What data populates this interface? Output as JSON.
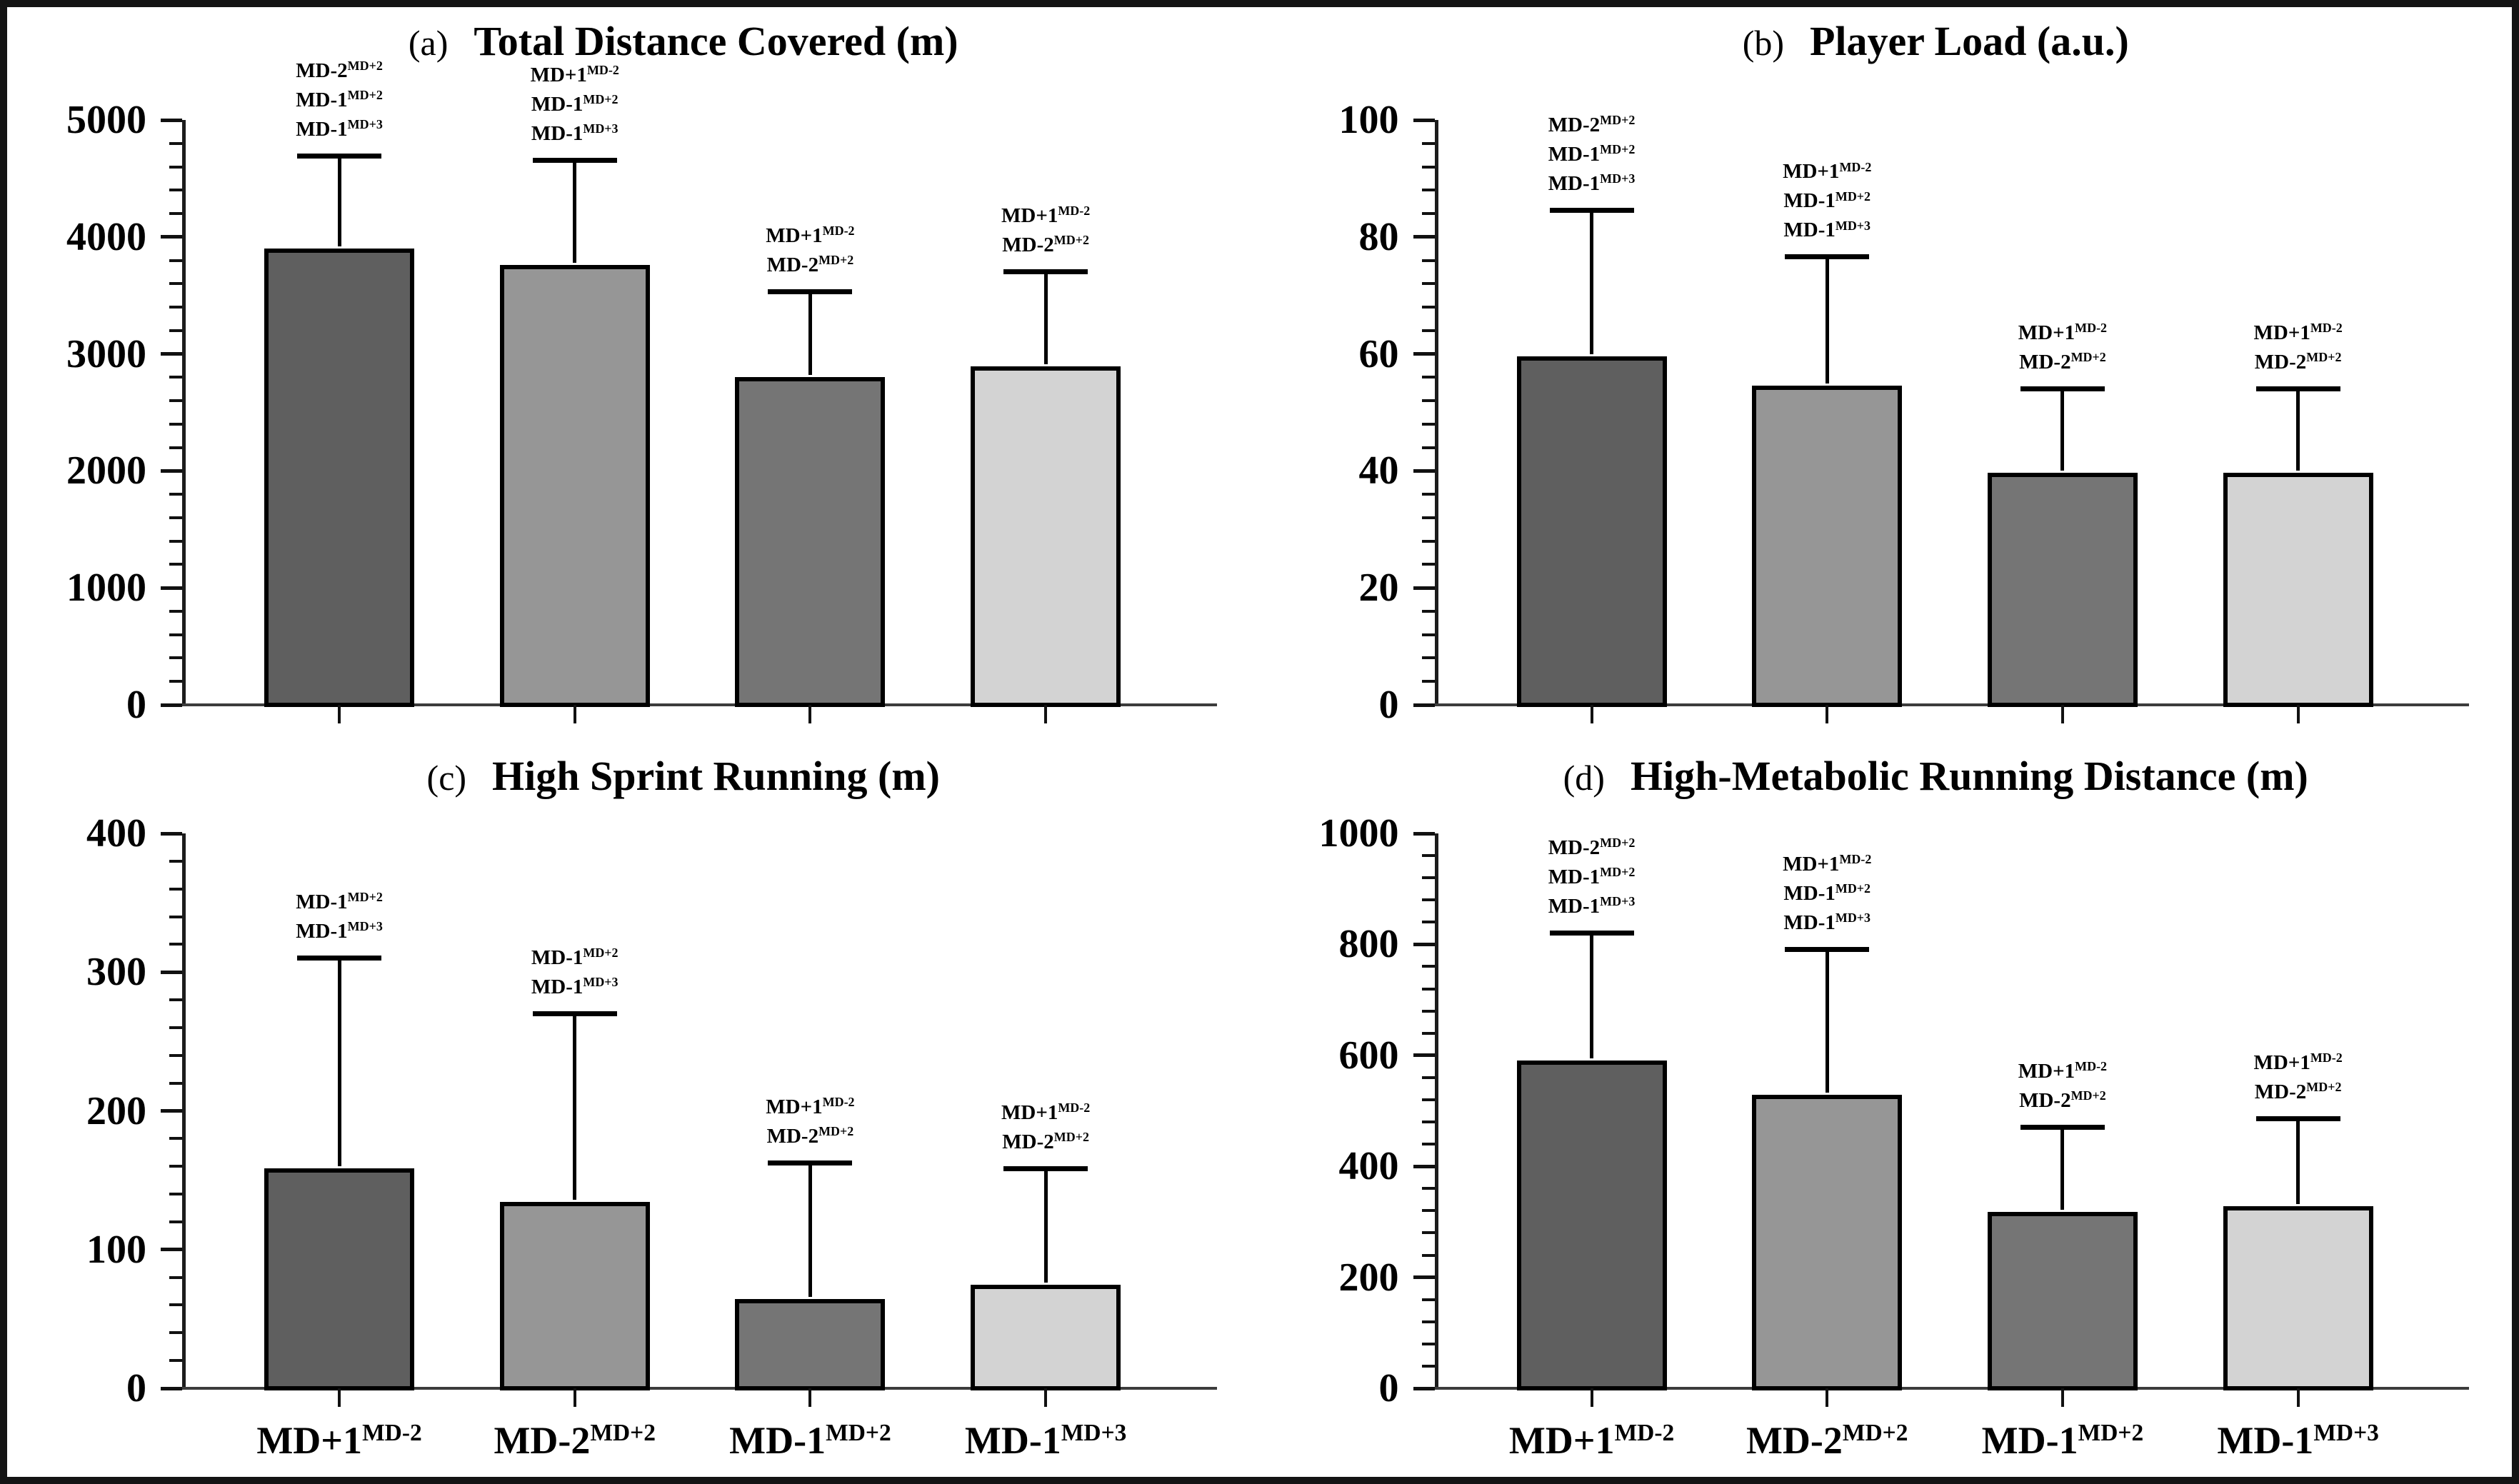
{
  "figure": {
    "background": "#ffffff",
    "border_color": "#141414",
    "bar_colors": [
      "#5f5f5f",
      "#969696",
      "#757575",
      "#d3d3d3"
    ]
  },
  "chart_data": [
    {
      "type": "bar",
      "panel_letter": "(a)",
      "title": "Total Distance Covered (m)",
      "xlabel": "",
      "ylabel": "",
      "ylim": [
        0,
        5000
      ],
      "ytick_step": 1000,
      "minor_subdivisions": 5,
      "grid": false,
      "show_x_labels": false,
      "categories": [
        "MD+1^MD-2",
        "MD-2^MD+2",
        "MD-1^MD+2",
        "MD-1^MD+3"
      ],
      "values": [
        3920,
        3780,
        2820,
        2910
      ],
      "error_tops": [
        4690,
        4650,
        3530,
        3700
      ],
      "annotations": [
        [
          "MD-2^MD+2",
          "MD-1^MD+2",
          "MD-1^MD+3"
        ],
        [
          "MD+1^MD-2",
          "MD-1^MD+2",
          "MD-1^MD+3"
        ],
        [
          "MD+1^MD-2",
          "MD-2^MD+2"
        ],
        [
          "MD+1^MD-2",
          "MD-2^MD+2"
        ]
      ]
    },
    {
      "type": "bar",
      "panel_letter": "(b)",
      "title": "Player Load (a.u.)",
      "xlabel": "",
      "ylabel": "",
      "ylim": [
        0,
        100
      ],
      "ytick_step": 20,
      "minor_subdivisions": 5,
      "grid": false,
      "show_x_labels": false,
      "categories": [
        "MD+1^MD-2",
        "MD-2^MD+2",
        "MD-1^MD+2",
        "MD-1^MD+3"
      ],
      "values": [
        60,
        55,
        40,
        40
      ],
      "error_tops": [
        84.5,
        76.5,
        54,
        54
      ],
      "annotations": [
        [
          "MD-2^MD+2",
          "MD-1^MD+2",
          "MD-1^MD+3"
        ],
        [
          "MD+1^MD-2",
          "MD-1^MD+2",
          "MD-1^MD+3"
        ],
        [
          "MD+1^MD-2",
          "MD-2^MD+2"
        ],
        [
          "MD+1^MD-2",
          "MD-2^MD+2"
        ]
      ]
    },
    {
      "type": "bar",
      "panel_letter": "(c)",
      "title": "High Sprint Running (m)",
      "xlabel": "",
      "ylabel": "",
      "ylim": [
        0,
        400
      ],
      "ytick_step": 100,
      "minor_subdivisions": 5,
      "grid": false,
      "show_x_labels": true,
      "categories": [
        "MD+1^MD-2",
        "MD-2^MD+2",
        "MD-1^MD+2",
        "MD-1^MD+3"
      ],
      "values": [
        160,
        136,
        66,
        76
      ],
      "error_tops": [
        310,
        270,
        162,
        158
      ],
      "annotations": [
        [
          "MD-1^MD+2",
          "MD-1^MD+3"
        ],
        [
          "MD-1^MD+2",
          "MD-1^MD+3"
        ],
        [
          "MD+1^MD-2",
          "MD-2^MD+2"
        ],
        [
          "MD+1^MD-2",
          "MD-2^MD+2"
        ]
      ]
    },
    {
      "type": "bar",
      "panel_letter": "(d)",
      "title": "High-Metabolic Running Distance (m)",
      "xlabel": "",
      "ylabel": "",
      "ylim": [
        0,
        1000
      ],
      "ytick_step": 200,
      "minor_subdivisions": 5,
      "grid": false,
      "show_x_labels": true,
      "categories": [
        "MD+1^MD-2",
        "MD-2^MD+2",
        "MD-1^MD+2",
        "MD-1^MD+3"
      ],
      "values": [
        595,
        533,
        322,
        332
      ],
      "error_tops": [
        820,
        790,
        470,
        485
      ],
      "annotations": [
        [
          "MD-2^MD+2",
          "MD-1^MD+2",
          "MD-1^MD+3"
        ],
        [
          "MD+1^MD-2",
          "MD-1^MD+2",
          "MD-1^MD+3"
        ],
        [
          "MD+1^MD-2",
          "MD-2^MD+2"
        ],
        [
          "MD+1^MD-2",
          "MD-2^MD+2"
        ]
      ]
    }
  ]
}
